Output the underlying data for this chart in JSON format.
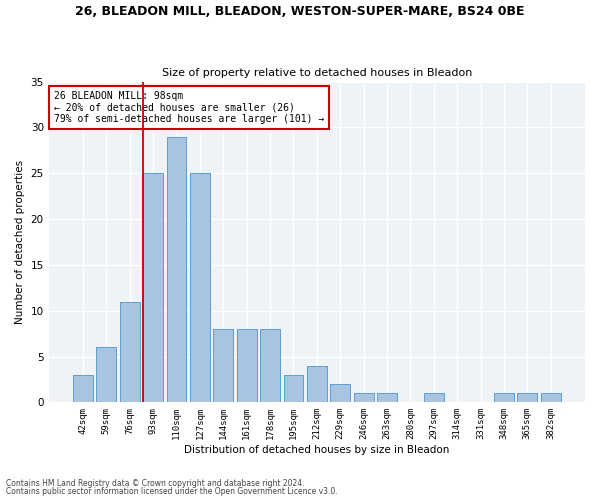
{
  "title1": "26, BLEADON MILL, BLEADON, WESTON-SUPER-MARE, BS24 0BE",
  "title2": "Size of property relative to detached houses in Bleadon",
  "xlabel": "Distribution of detached houses by size in Bleadon",
  "ylabel": "Number of detached properties",
  "bar_labels": [
    "42sqm",
    "59sqm",
    "76sqm",
    "93sqm",
    "110sqm",
    "127sqm",
    "144sqm",
    "161sqm",
    "178sqm",
    "195sqm",
    "212sqm",
    "229sqm",
    "246sqm",
    "263sqm",
    "280sqm",
    "297sqm",
    "314sqm",
    "331sqm",
    "348sqm",
    "365sqm",
    "382sqm"
  ],
  "bar_values": [
    3,
    6,
    11,
    25,
    29,
    25,
    8,
    8,
    8,
    3,
    4,
    2,
    1,
    1,
    0,
    1,
    0,
    0,
    1,
    1,
    1
  ],
  "bar_color": "#a8c4e0",
  "bar_edge_color": "#5a9fd4",
  "bg_color": "#eef3f8",
  "grid_color": "#ffffff",
  "vline_x_index": 3,
  "vline_color": "#cc0000",
  "annotation_text": "26 BLEADON MILL: 98sqm\n← 20% of detached houses are smaller (26)\n79% of semi-detached houses are larger (101) →",
  "annotation_box_color": "#cc0000",
  "footnote1": "Contains HM Land Registry data © Crown copyright and database right 2024.",
  "footnote2": "Contains public sector information licensed under the Open Government Licence v3.0.",
  "ylim": [
    0,
    35
  ],
  "yticks": [
    0,
    5,
    10,
    15,
    20,
    25,
    30,
    35
  ]
}
